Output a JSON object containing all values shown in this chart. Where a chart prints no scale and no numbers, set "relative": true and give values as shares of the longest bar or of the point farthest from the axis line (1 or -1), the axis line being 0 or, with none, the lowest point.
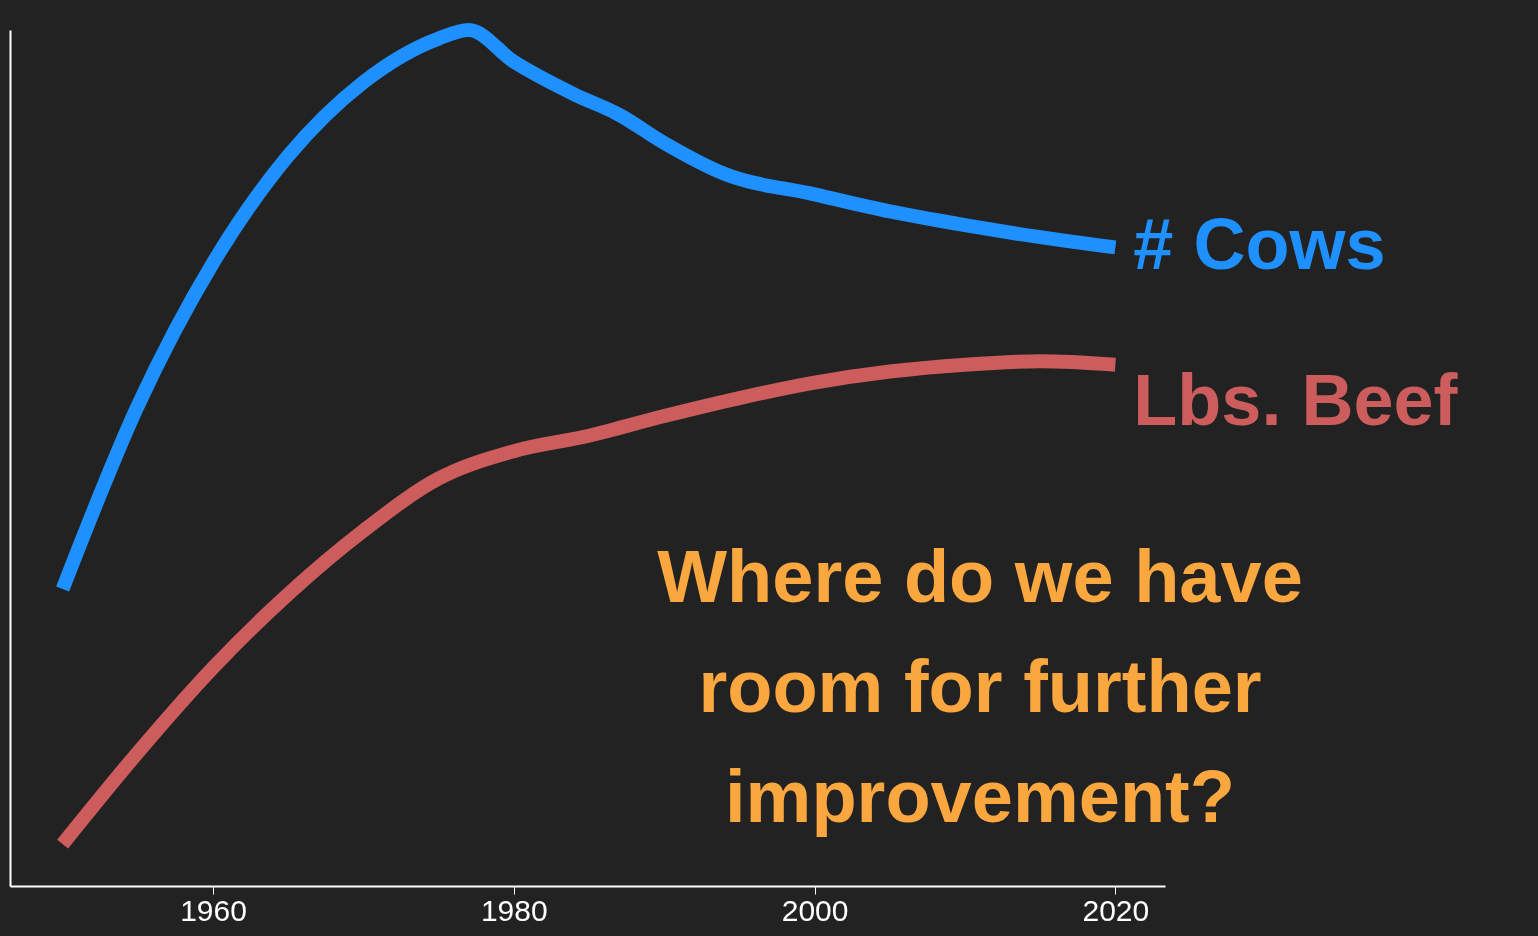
{
  "chart_data": {
    "type": "line",
    "relative": true,
    "legend": false,
    "grid": false,
    "marker": "none",
    "line_style": "solid",
    "x": [
      1950,
      1955,
      1960,
      1965,
      1970,
      1975,
      1977,
      1980,
      1984,
      1987,
      1990,
      1994,
      2000,
      2005,
      2010,
      2015,
      2020
    ],
    "xlim": [
      1946.5,
      2023.3
    ],
    "xticks": [
      1960,
      1980,
      2000,
      2020
    ],
    "series": [
      {
        "name": "# Cows",
        "color": "#1e90ff",
        "values": [
          0.347,
          0.561,
          0.728,
          0.853,
          0.939,
          0.99,
          1,
          0.963,
          0.925,
          0.901,
          0.868,
          0.832,
          0.808,
          0.788,
          0.772,
          0.758,
          0.746
        ]
      },
      {
        "name": "Lbs. Beef",
        "color": "#cd5c5c",
        "x": [
          1950,
          1955,
          1960,
          1965,
          1970,
          1975,
          1980,
          1985,
          1990,
          1995,
          2000,
          2005,
          2010,
          2015,
          2020
        ],
        "values": [
          0.049,
          0.156,
          0.255,
          0.341,
          0.415,
          0.476,
          0.508,
          0.526,
          0.549,
          0.57,
          0.588,
          0.601,
          0.609,
          0.613,
          0.609
        ]
      }
    ],
    "annotations": [
      "Where do we have room for further improvement?"
    ]
  }
}
